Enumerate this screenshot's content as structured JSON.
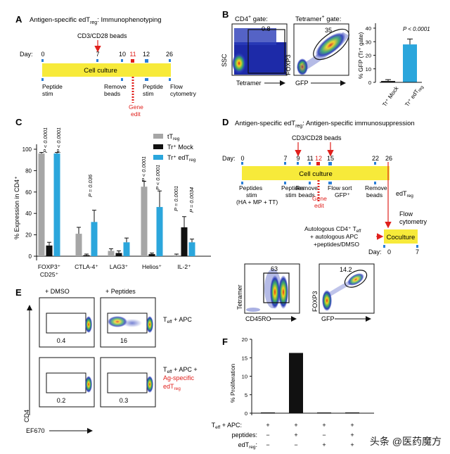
{
  "panel_a": {
    "letter": "A",
    "title": "Antigen-specific edT",
    "title_sub": "reg",
    "title_rest": ": Immunophenotyping",
    "beads_label": "CD3/CD28 beads",
    "day_label": "Day:",
    "days": [
      "0",
      "7",
      "10",
      "11",
      "12",
      "26"
    ],
    "bar_label": "Cell culture",
    "steps": [
      "Peptide",
      "stim",
      "Remove",
      "beads",
      "Peptide",
      "stim",
      "Flow",
      "cytometry"
    ],
    "gene_edit": [
      "Gene",
      "edit"
    ]
  },
  "panel_b": {
    "letter": "B",
    "gate1_title": "CD4",
    "gate1_sup": "+",
    "gate1_rest": " gate:",
    "gate2_title": "Tetramer",
    "gate2_sup": "+",
    "gate2_rest": " gate:",
    "gate1_value": "0.8",
    "gate2_value": "35",
    "ssc_label": "SSC",
    "tetramer_label": "Tetramer",
    "foxp3_label": "FOXP3",
    "gfp_label": "GFP",
    "bar_ylabel": "% GFP (Tr⁺ gate)",
    "pvalue": "P < 0.0001",
    "yticks": [
      "0",
      "10",
      "20",
      "30",
      "40"
    ],
    "categories": [
      "Tr⁺ Mock",
      "Tr⁺ edT"
    ],
    "cat_sub": "reg"
  },
  "panel_c": {
    "letter": "C",
    "ylabel": "% Expression in CD4⁺",
    "yticks": [
      "0",
      "20",
      "40",
      "60",
      "80",
      "100"
    ],
    "legend": [
      "tT",
      "Tr⁺ Mock",
      "Tr⁺ edT"
    ],
    "legend_sub": [
      "reg",
      "",
      "reg"
    ],
    "categories": [
      "FOXP3⁺",
      "CTLA-4⁺",
      "LAG3⁺",
      "Helios⁺",
      "IL-2⁺"
    ],
    "cat_second_line": "CD25⁺",
    "pvalues": [
      "P < 0.0001",
      "P < 0.0001",
      "P = 0.036",
      "P < 0.0001",
      "P < 0.0001",
      "P = 0.0001",
      "P = 0.0034"
    ]
  },
  "panel_d": {
    "letter": "D",
    "title": "Antigen-specific edT",
    "title_sub": "reg",
    "title_rest": ": Antigen-specific immunosuppression",
    "beads_label": "CD3/CD28 beads",
    "day_label": "Day:",
    "days": [
      "0",
      "7",
      "9",
      "11",
      "12",
      "15",
      "22",
      "26"
    ],
    "bar_label": "Cell culture",
    "steps": [
      "Peptides",
      "stim",
      "(HA + MP + TT)",
      "Peptides",
      "stim",
      "Remove",
      "beads",
      "Flow sort",
      "GFP⁺",
      "Remove",
      "beads"
    ],
    "gene_edit": [
      "Gene",
      "edit"
    ],
    "edtreg": "edT",
    "edtreg_sub": "reg",
    "flow": [
      "Flow",
      "cytometry"
    ],
    "autologous": [
      "Autologous CD4⁺ T",
      "+ autologous APC",
      "+peptides/DMSO"
    ],
    "auto_sub": "eff",
    "coculture": "Coculture",
    "co_day": "Day:",
    "co_days": [
      "0",
      "7"
    ],
    "gate1_value": "63",
    "gate2_value": "14.2",
    "tetramer_label": "Tetramer",
    "cd45ro_label": "CD45RO",
    "foxp3_label": "FOXP3",
    "gfp_label": "GFP"
  },
  "panel_e": {
    "letter": "E",
    "col_headers": [
      "+ DMSO",
      "+ Peptides"
    ],
    "values": [
      "0.4",
      "16",
      "0.2",
      "0.3"
    ],
    "row1_label": "T",
    "row1_sub": "eff",
    "row1_rest": " + APC",
    "row2_label": "T",
    "row2_sub": "eff",
    "row2_rest": " + APC +",
    "row2_red1": "Ag-specific",
    "row2_red2": "edT",
    "row2_red2_sub": "reg",
    "ylabel": "CD4",
    "xlabel": "EF670"
  },
  "panel_f": {
    "letter": "F",
    "ylabel": "% Proliferation",
    "yticks": [
      "0",
      "5",
      "10",
      "15",
      "20"
    ],
    "row_labels": [
      "T",
      "peptides:",
      "edT"
    ],
    "row_subs": [
      "eff",
      "",
      "reg"
    ],
    "row_rests": [
      " + APC:",
      "",
      ":"
    ],
    "signs": [
      [
        "+",
        "+",
        "+",
        "+"
      ],
      [
        "−",
        "+",
        "−",
        "+"
      ],
      [
        "−",
        "−",
        "+",
        "+"
      ]
    ]
  },
  "watermark": "头条 @医药魔方",
  "colors": {
    "yellow": "#f7ea3a",
    "red": "#e0201c",
    "blue": "#2ba6dc",
    "gray": "#a6a6a6",
    "black": "#111111"
  },
  "chart_data": [
    {
      "type": "bar",
      "panel": "B",
      "categories": [
        "Tr+ Mock",
        "Tr+ edTreg"
      ],
      "values": [
        1,
        28
      ],
      "errors": [
        1,
        4
      ],
      "ylabel": "% GFP (Tr+ gate)",
      "ylim": [
        0,
        40
      ]
    },
    {
      "type": "bar",
      "panel": "C",
      "categories": [
        "FOXP3+ CD25+",
        "CTLA-4+",
        "LAG3+",
        "Helios+",
        "IL-2+"
      ],
      "series": [
        {
          "name": "tTreg",
          "values": [
            96,
            21,
            5,
            65,
            1
          ],
          "errors": [
            1,
            6,
            2,
            5,
            1
          ]
        },
        {
          "name": "Tr+ Mock",
          "values": [
            10,
            1,
            3,
            2,
            27
          ],
          "errors": [
            3,
            1,
            2,
            1,
            10
          ]
        },
        {
          "name": "Tr+ edTreg",
          "values": [
            96,
            32,
            13,
            46,
            13
          ],
          "errors": [
            1,
            11,
            4,
            15,
            3
          ]
        }
      ],
      "ylabel": "% Expression in CD4+",
      "ylim": [
        0,
        100
      ]
    },
    {
      "type": "bar",
      "panel": "F",
      "categories": [
        "Teff+APC",
        "Teff+APC+peptides",
        "Teff+APC+edTreg",
        "Teff+APC+peptides+edTreg"
      ],
      "values": [
        0.2,
        16.3,
        0.1,
        0.2
      ],
      "ylabel": "% Proliferation",
      "ylim": [
        0,
        20
      ]
    }
  ]
}
